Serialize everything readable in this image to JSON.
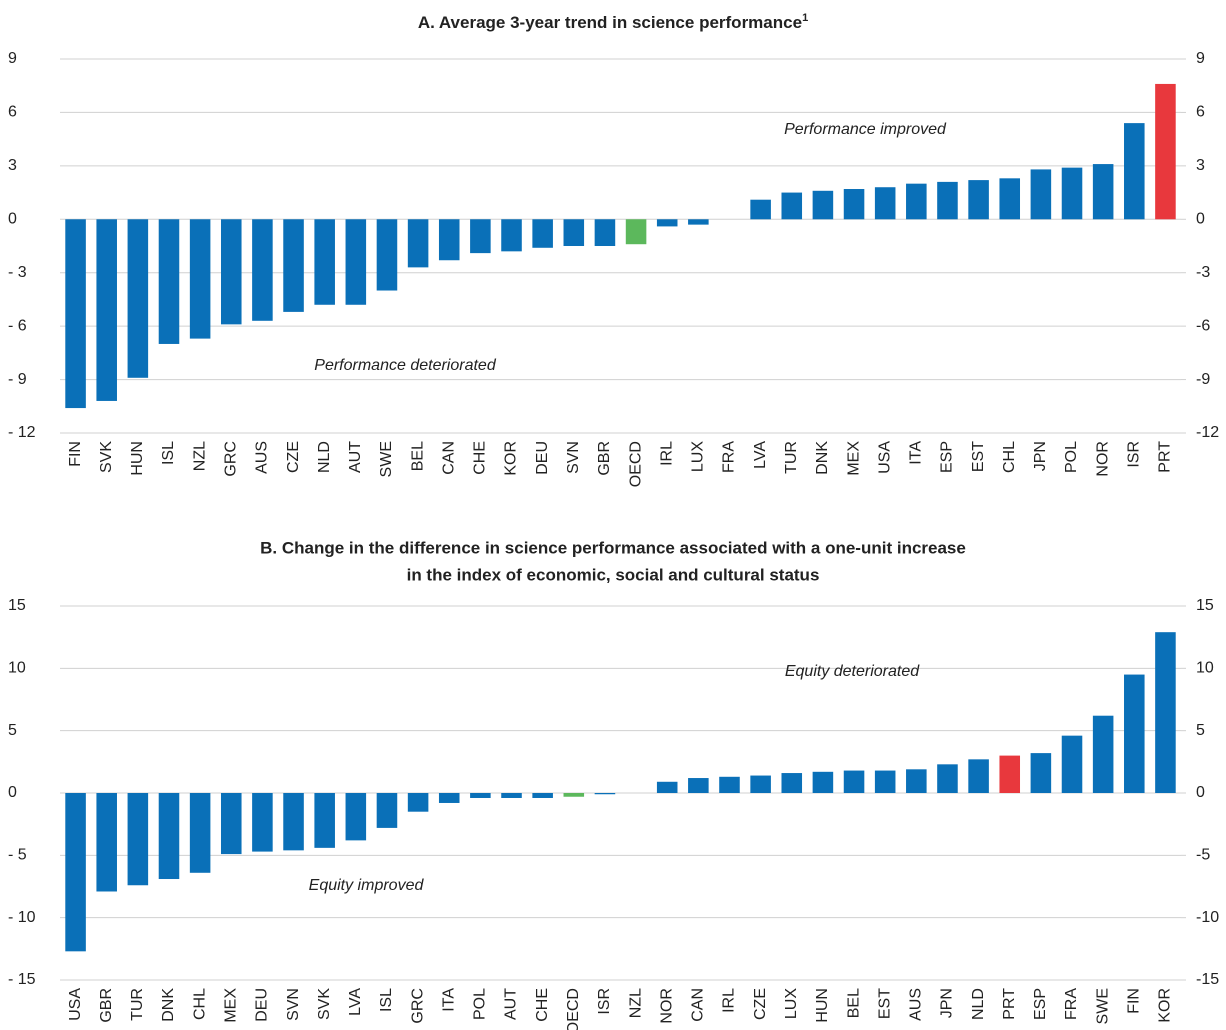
{
  "chart_data": [
    {
      "type": "bar",
      "title": "A. Average 3-year trend in science performance",
      "title_superscript": "1",
      "categories": [
        "FIN",
        "SVK",
        "HUN",
        "ISL",
        "NZL",
        "GRC",
        "AUS",
        "CZE",
        "NLD",
        "AUT",
        "SWE",
        "BEL",
        "CAN",
        "CHE",
        "KOR",
        "DEU",
        "SVN",
        "GBR",
        "OECD",
        "IRL",
        "LUX",
        "FRA",
        "LVA",
        "TUR",
        "DNK",
        "MEX",
        "USA",
        "ITA",
        "ESP",
        "EST",
        "CHL",
        "JPN",
        "POL",
        "NOR",
        "ISR",
        "PRT"
      ],
      "values": [
        -10.6,
        -10.2,
        -8.9,
        -7.0,
        -6.7,
        -5.9,
        -5.7,
        -5.2,
        -4.8,
        -4.8,
        -4.0,
        -2.7,
        -2.3,
        -1.9,
        -1.8,
        -1.6,
        -1.5,
        -1.5,
        -1.4,
        -0.4,
        -0.3,
        0,
        1.1,
        1.5,
        1.6,
        1.7,
        1.8,
        2.0,
        2.1,
        2.2,
        2.3,
        2.8,
        2.9,
        3.1,
        5.4,
        7.6
      ],
      "colors": [
        "#0a70b8",
        "#0a70b8",
        "#0a70b8",
        "#0a70b8",
        "#0a70b8",
        "#0a70b8",
        "#0a70b8",
        "#0a70b8",
        "#0a70b8",
        "#0a70b8",
        "#0a70b8",
        "#0a70b8",
        "#0a70b8",
        "#0a70b8",
        "#0a70b8",
        "#0a70b8",
        "#0a70b8",
        "#0a70b8",
        "#5cb85c",
        "#0a70b8",
        "#0a70b8",
        "#0a70b8",
        "#0a70b8",
        "#0a70b8",
        "#0a70b8",
        "#0a70b8",
        "#0a70b8",
        "#0a70b8",
        "#0a70b8",
        "#0a70b8",
        "#0a70b8",
        "#0a70b8",
        "#0a70b8",
        "#0a70b8",
        "#0a70b8",
        "#e8383d"
      ],
      "ylim": [
        -12,
        9
      ],
      "yticks": [
        9,
        6,
        3,
        0,
        {
          "value": -3,
          "label": "- 3"
        },
        {
          "value": -6,
          "label": "- 6"
        },
        {
          "value": -9,
          "label": "- 9"
        },
        {
          "value": -12,
          "label": "- 12"
        }
      ],
      "y2lim": [
        -12,
        9
      ],
      "y2ticks": [
        9,
        6,
        3,
        0,
        -3,
        -6,
        -9,
        -12
      ],
      "grid": true,
      "annotations": [
        "Performance improved",
        "Performance deteriorated"
      ]
    },
    {
      "type": "bar",
      "title": [
        "B. Change in the difference in science performance associated with a one-unit increase",
        "in the index of economic, social and cultural status"
      ],
      "categories": [
        "USA",
        "GBR",
        "TUR",
        "DNK",
        "CHL",
        "MEX",
        "DEU",
        "SVN",
        "SVK",
        "LVA",
        "ISL",
        "GRC",
        "ITA",
        "POL",
        "AUT",
        "CHE",
        "OECD",
        "ISR",
        "NZL",
        "NOR",
        "CAN",
        "IRL",
        "CZE",
        "LUX",
        "HUN",
        "BEL",
        "EST",
        "AUS",
        "JPN",
        "NLD",
        "PRT",
        "ESP",
        "FRA",
        "SWE",
        "FIN",
        "KOR"
      ],
      "values": [
        -12.7,
        -7.9,
        -7.4,
        -6.9,
        -6.4,
        -4.9,
        -4.7,
        -4.6,
        -4.4,
        -3.8,
        -2.8,
        -1.5,
        -0.8,
        -0.4,
        -0.4,
        -0.4,
        -0.3,
        -0.1,
        0,
        0.9,
        1.2,
        1.3,
        1.4,
        1.6,
        1.7,
        1.8,
        1.8,
        1.9,
        2.3,
        2.7,
        3.0,
        3.2,
        4.6,
        6.2,
        9.5,
        12.9
      ],
      "colors": [
        "#0a70b8",
        "#0a70b8",
        "#0a70b8",
        "#0a70b8",
        "#0a70b8",
        "#0a70b8",
        "#0a70b8",
        "#0a70b8",
        "#0a70b8",
        "#0a70b8",
        "#0a70b8",
        "#0a70b8",
        "#0a70b8",
        "#0a70b8",
        "#0a70b8",
        "#0a70b8",
        "#5cb85c",
        "#0a70b8",
        "#0a70b8",
        "#0a70b8",
        "#0a70b8",
        "#0a70b8",
        "#0a70b8",
        "#0a70b8",
        "#0a70b8",
        "#0a70b8",
        "#0a70b8",
        "#0a70b8",
        "#0a70b8",
        "#0a70b8",
        "#e8383d",
        "#0a70b8",
        "#0a70b8",
        "#0a70b8",
        "#0a70b8",
        "#0a70b8"
      ],
      "ylim": [
        -15,
        15
      ],
      "yticks": [
        15,
        10,
        5,
        0,
        {
          "value": -5,
          "label": "- 5"
        },
        {
          "value": -10,
          "label": "- 10"
        },
        {
          "value": -15,
          "label": "- 15"
        }
      ],
      "y2lim": [
        -15,
        15
      ],
      "y2ticks": [
        15,
        10,
        5,
        0,
        -5,
        -10,
        -15
      ],
      "grid": true,
      "annotations": [
        "Equity deteriorated",
        "Equity improved"
      ]
    }
  ]
}
